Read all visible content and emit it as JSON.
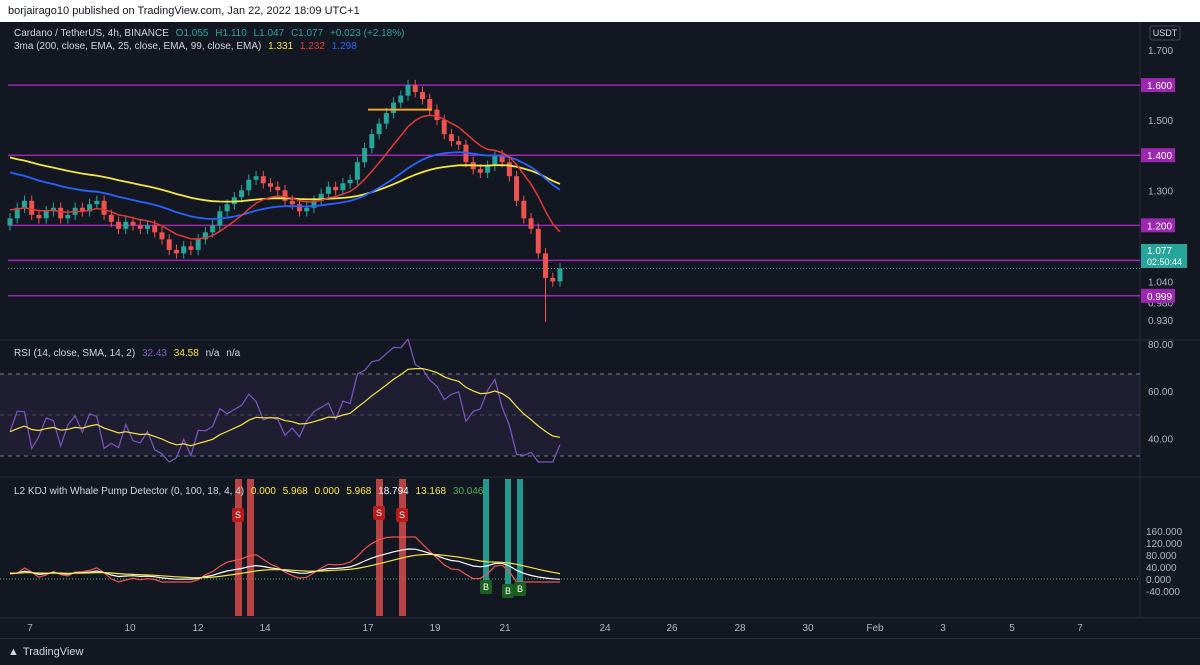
{
  "header": {
    "publish_text": "borjairago10 published on TradingView.com, Jan 22, 2022 18:09 UTC+1"
  },
  "footer": {
    "brand": "TradingView"
  },
  "price_pane": {
    "symbol_line": {
      "symbol": "Cardano / TetherUS, 4h, BINANCE",
      "o": "O1.055",
      "h": "H1.110",
      "l": "L1.047",
      "c": "C1.077",
      "chg": "+0.023 (+2.18%)"
    },
    "ma_line": {
      "label": "3ma (200, close, EMA, 25, close, EMA, 99, close, EMA)",
      "v1": "1.331",
      "v2": "1.232",
      "v3": "1.298"
    },
    "currency": "USDT",
    "axis_ticks": [
      "1.700",
      "1.600",
      "1.500",
      "1.400",
      "1.300",
      "1.200",
      "1.100",
      "1.040",
      "0.980",
      "0.930"
    ],
    "levels": [
      "1.600",
      "1.400",
      "1.200",
      "1.100",
      "0.999"
    ],
    "last_price": "1.077",
    "countdown": "02:50:44"
  },
  "rsi_pane": {
    "label": "RSI (14, close, SMA, 14, 2)",
    "v1": "32.43",
    "v2": "34.58",
    "v3": "n/a",
    "v4": "n/a",
    "ticks": [
      "80.00",
      "60.00",
      "40.00"
    ]
  },
  "kdj_pane": {
    "label": "L2 KDJ with Whale Pump Detector (0, 100, 18, 4, 4)",
    "v1": "0.000",
    "v2": "5.968",
    "v3": "0.000",
    "v4": "5.968",
    "v5": "18.794",
    "v6": "13.168",
    "v7": "30.046",
    "ticks": [
      "160.000",
      "120.000",
      "80.000",
      "40.000",
      "0.000",
      "-40.000"
    ],
    "sell_label": "S",
    "buy_label": "B"
  },
  "x_axis": {
    "ticks": [
      "7",
      "10",
      "12",
      "14",
      "17",
      "19",
      "21",
      "24",
      "26",
      "28",
      "30",
      "Feb",
      "3",
      "5",
      "7"
    ]
  },
  "colors": {
    "up": "#26a69a",
    "down": "#ef5350",
    "level": "#9c27b0",
    "ema200": "#f5e642",
    "ema25": "#e53935",
    "ema99": "#2962ff",
    "rsi": "#7e57c2",
    "rsi_ma": "#f5e642"
  },
  "chart_data": {
    "type": "line",
    "title": "Cardano / TetherUS, 4h, BINANCE",
    "close_series": [
      1.22,
      1.25,
      1.27,
      1.23,
      1.22,
      1.24,
      1.25,
      1.22,
      1.23,
      1.25,
      1.24,
      1.26,
      1.27,
      1.23,
      1.21,
      1.19,
      1.21,
      1.2,
      1.19,
      1.2,
      1.18,
      1.16,
      1.13,
      1.12,
      1.14,
      1.13,
      1.16,
      1.18,
      1.2,
      1.24,
      1.26,
      1.28,
      1.3,
      1.33,
      1.34,
      1.32,
      1.31,
      1.3,
      1.27,
      1.26,
      1.24,
      1.25,
      1.27,
      1.29,
      1.31,
      1.3,
      1.32,
      1.33,
      1.38,
      1.42,
      1.46,
      1.49,
      1.52,
      1.55,
      1.57,
      1.6,
      1.58,
      1.56,
      1.53,
      1.5,
      1.46,
      1.44,
      1.43,
      1.38,
      1.36,
      1.35,
      1.37,
      1.4,
      1.38,
      1.34,
      1.27,
      1.22,
      1.19,
      1.12,
      1.05,
      1.04,
      1.077
    ],
    "levels": [
      1.6,
      1.4,
      1.2,
      1.1,
      0.999
    ],
    "ylim": [
      0.9,
      1.72
    ]
  }
}
